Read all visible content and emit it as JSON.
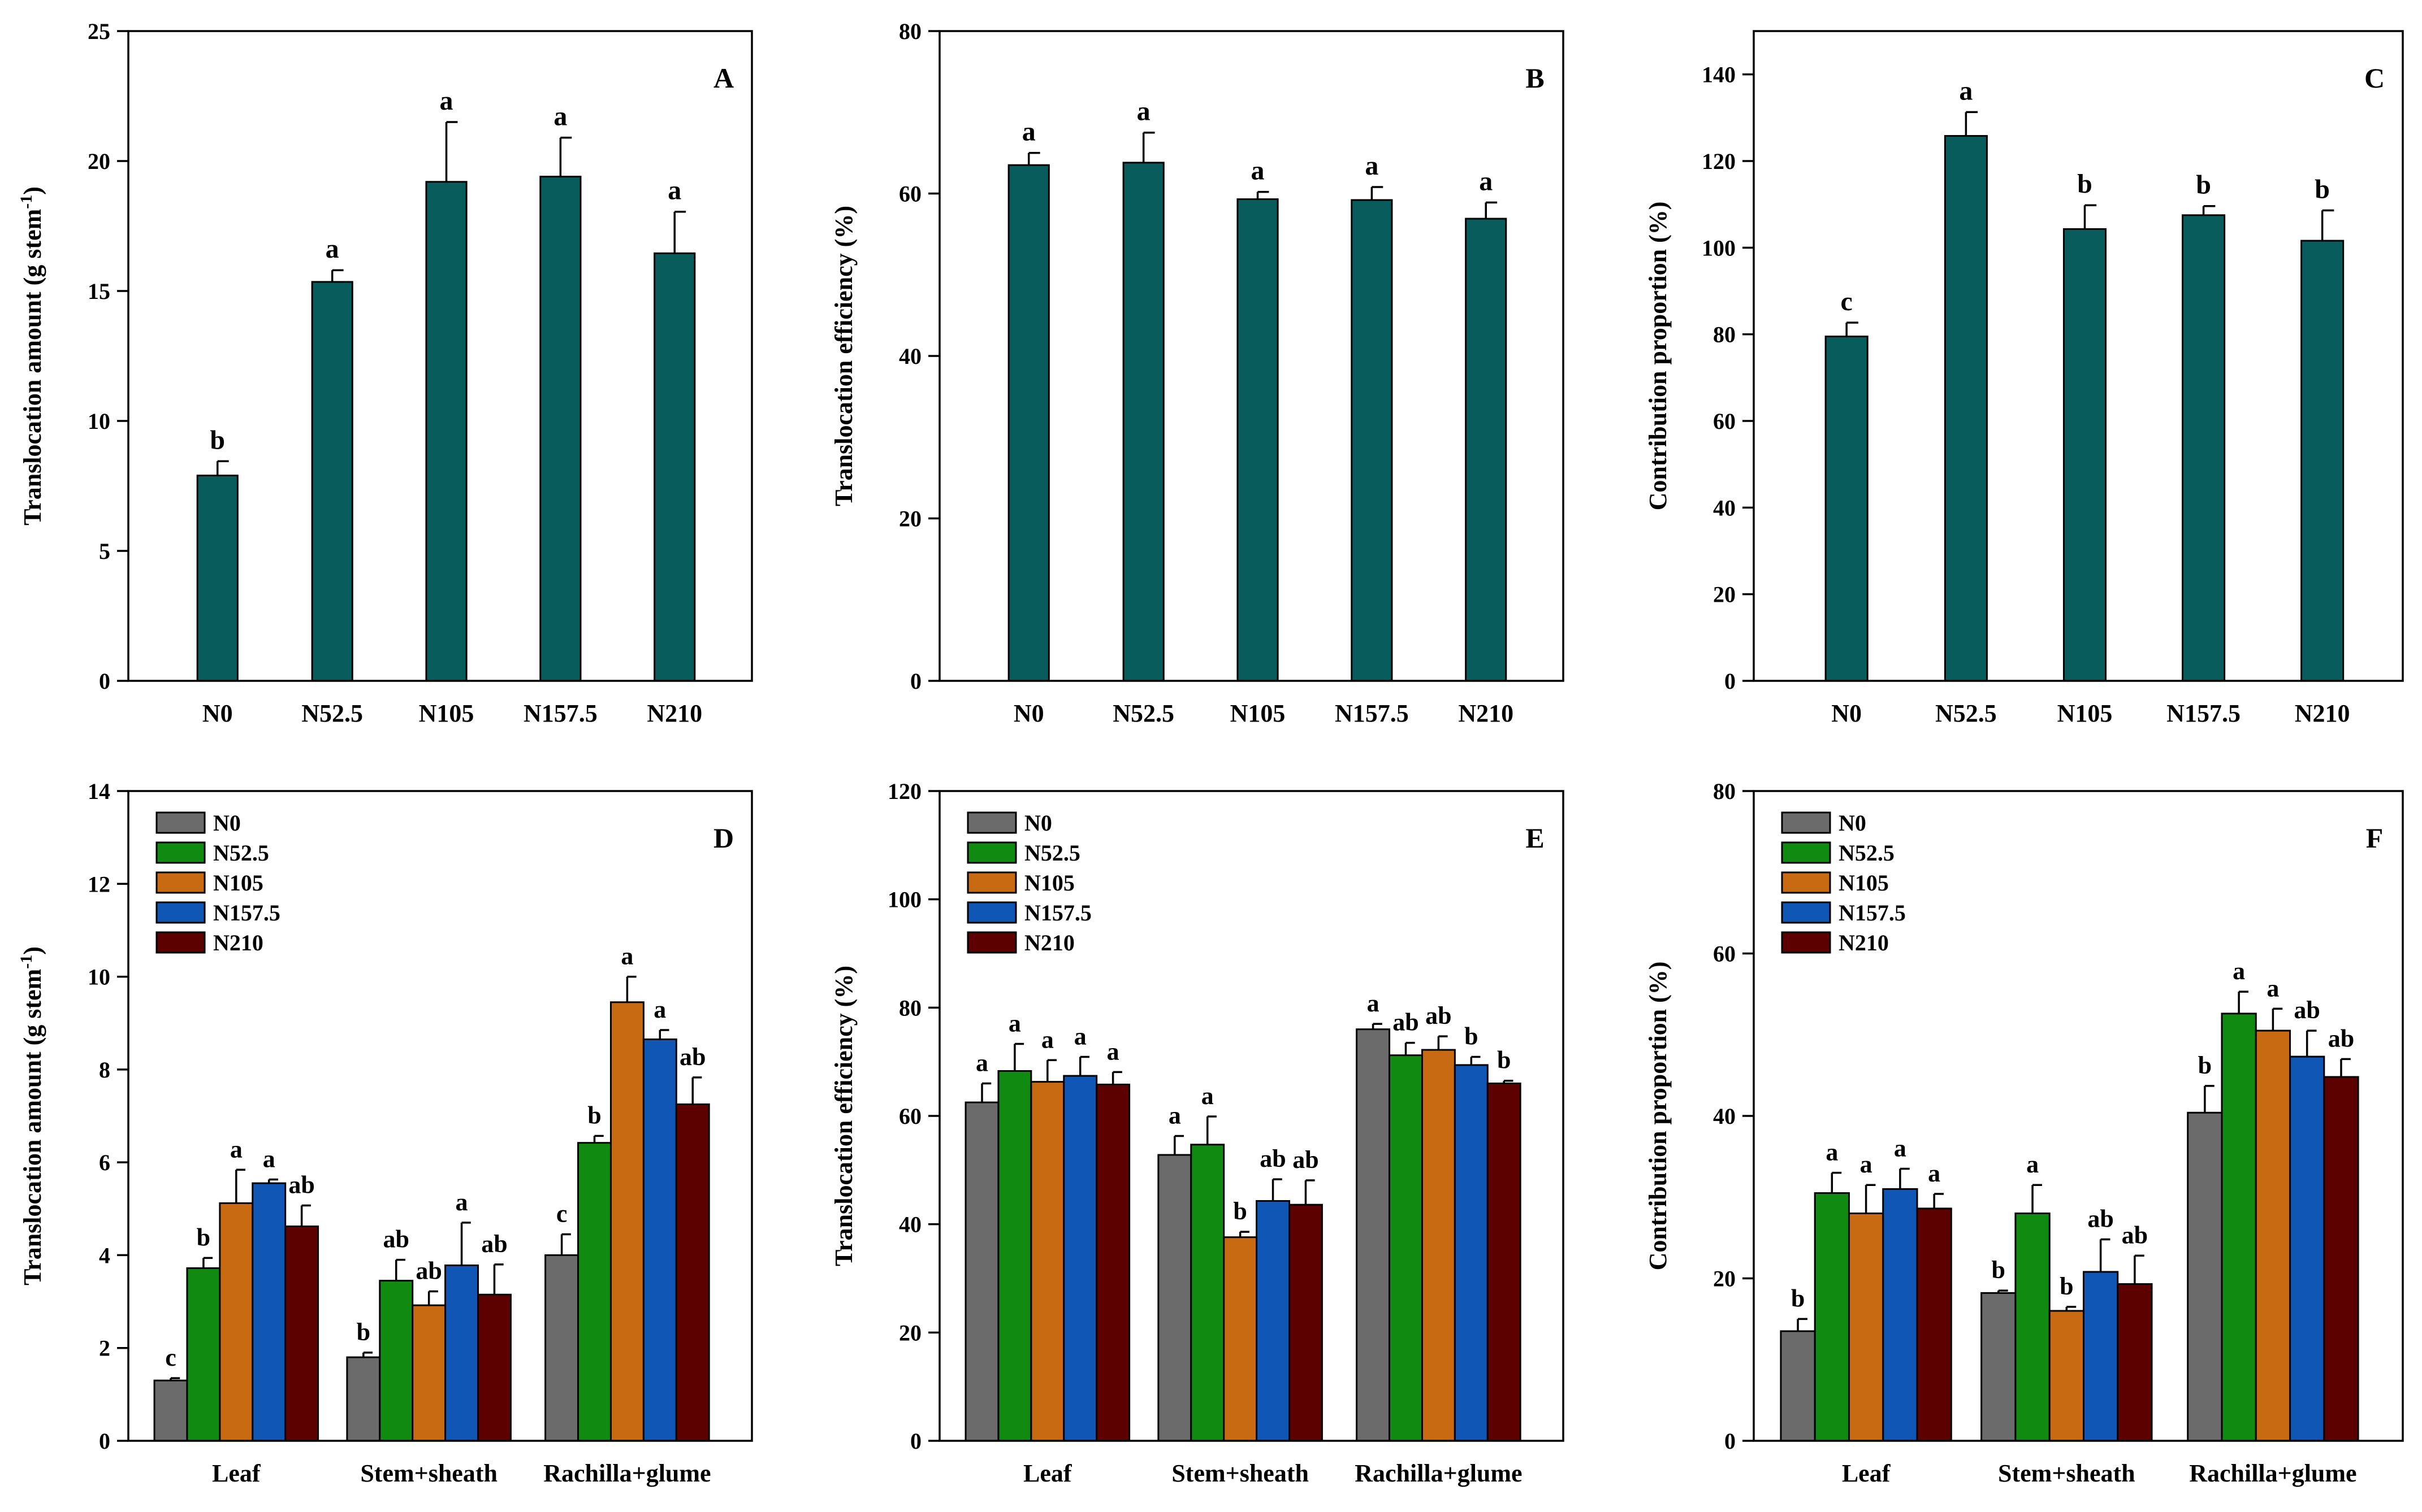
{
  "colors": {
    "single": "#085c5c",
    "N0": "#6b6b6b",
    "N52.5": "#118a11",
    "N105": "#c86a12",
    "N157.5": "#1056b4",
    "N210": "#5c0000"
  },
  "chart_data": [
    {
      "panel": "A",
      "type": "bar",
      "categories": [
        "N0",
        "N52.5",
        "N105",
        "N157.5",
        "N210"
      ],
      "values": [
        7.9,
        15.35,
        19.2,
        19.4,
        16.45
      ],
      "errors": [
        0.55,
        0.45,
        2.3,
        1.5,
        1.6
      ],
      "letters": [
        "b",
        "a",
        "a",
        "a",
        "a"
      ],
      "ylabel": "Translocation amount (g stem",
      "ylabel_sup": "-1",
      "ylabel_end": ")",
      "ylim": [
        0,
        25
      ],
      "yticks": [
        "0",
        "5",
        "10",
        "15",
        "20",
        "25"
      ]
    },
    {
      "panel": "B",
      "type": "bar",
      "categories": [
        "N0",
        "N52.5",
        "N105",
        "N157.5",
        "N210"
      ],
      "values": [
        63.5,
        63.8,
        59.3,
        59.2,
        56.9
      ],
      "errors": [
        1.5,
        3.7,
        0.9,
        1.6,
        2.0
      ],
      "letters": [
        "a",
        "a",
        "a",
        "a",
        "a"
      ],
      "ylabel": "Translocation efficiency (%)",
      "ylim": [
        0,
        80
      ],
      "yticks": [
        "0",
        "20",
        "40",
        "60",
        "80"
      ]
    },
    {
      "panel": "C",
      "type": "bar",
      "categories": [
        "N0",
        "N52.5",
        "N105",
        "N157.5",
        "N210"
      ],
      "values": [
        79.5,
        125.8,
        104.3,
        107.5,
        101.6
      ],
      "errors": [
        3.2,
        5.5,
        5.5,
        2.1,
        7.0
      ],
      "letters": [
        "c",
        "a",
        "b",
        "b",
        "b"
      ],
      "ylabel": "Contribution proportion (%)",
      "ylim": [
        0,
        150
      ],
      "yticks": [
        "0",
        "20",
        "40",
        "60",
        "80",
        "100",
        "120",
        "140"
      ]
    },
    {
      "panel": "D",
      "type": "bar",
      "categories": [
        "Leaf",
        "Stem+sheath",
        "Rachilla+glume"
      ],
      "series": [
        {
          "name": "N0",
          "values": [
            1.3,
            1.8,
            4.0
          ],
          "errors": [
            0.05,
            0.1,
            0.45
          ],
          "letters": [
            "c",
            "b",
            "c"
          ]
        },
        {
          "name": "N52.5",
          "values": [
            3.72,
            3.45,
            6.42
          ],
          "errors": [
            0.22,
            0.45,
            0.15
          ],
          "letters": [
            "b",
            "ab",
            "b"
          ]
        },
        {
          "name": "N105",
          "values": [
            5.12,
            2.92,
            9.45
          ],
          "errors": [
            0.72,
            0.3,
            0.55
          ],
          "letters": [
            "a",
            "ab",
            "a"
          ]
        },
        {
          "name": "N157.5",
          "values": [
            5.55,
            3.78,
            8.65
          ],
          "errors": [
            0.08,
            0.92,
            0.2
          ],
          "letters": [
            "a",
            "a",
            "a"
          ]
        },
        {
          "name": "N210",
          "values": [
            4.62,
            3.15,
            7.25
          ],
          "errors": [
            0.45,
            0.65,
            0.58
          ],
          "letters": [
            "ab",
            "ab",
            "ab"
          ]
        }
      ],
      "ylabel": "Translocation amount (g stem",
      "ylabel_sup": "-1",
      "ylabel_end": ")",
      "ylim": [
        0,
        14
      ],
      "yticks": [
        "0",
        "2",
        "4",
        "6",
        "8",
        "10",
        "12",
        "14"
      ],
      "legend": [
        "N0",
        "N52.5",
        "N105",
        "N157.5",
        "N210"
      ]
    },
    {
      "panel": "E",
      "type": "bar",
      "categories": [
        "Leaf",
        "Stem+sheath",
        "Rachilla+glume"
      ],
      "series": [
        {
          "name": "N0",
          "values": [
            62.5,
            52.8,
            76.0
          ],
          "errors": [
            3.5,
            3.5,
            1.0
          ],
          "letters": [
            "a",
            "a",
            "a"
          ]
        },
        {
          "name": "N52.5",
          "values": [
            68.3,
            54.7,
            71.2
          ],
          "errors": [
            5.0,
            5.2,
            2.3
          ],
          "letters": [
            "a",
            "a",
            "ab"
          ]
        },
        {
          "name": "N105",
          "values": [
            66.3,
            37.6,
            72.2
          ],
          "errors": [
            4.0,
            1.0,
            2.5
          ],
          "letters": [
            "a",
            "b",
            "ab"
          ]
        },
        {
          "name": "N157.5",
          "values": [
            67.4,
            44.3,
            69.4
          ],
          "errors": [
            3.5,
            4.0,
            1.5
          ],
          "letters": [
            "a",
            "ab",
            "b"
          ]
        },
        {
          "name": "N210",
          "values": [
            65.8,
            43.6,
            66.0
          ],
          "errors": [
            2.3,
            4.5,
            0.5
          ],
          "letters": [
            "a",
            "ab",
            "b"
          ]
        }
      ],
      "ylabel": "Translocation efficiency (%)",
      "ylim": [
        0,
        120
      ],
      "yticks": [
        "0",
        "20",
        "40",
        "60",
        "80",
        "100",
        "120"
      ],
      "legend": [
        "N0",
        "N52.5",
        "N105",
        "N157.5",
        "N210"
      ]
    },
    {
      "panel": "F",
      "type": "bar",
      "categories": [
        "Leaf",
        "Stem+sheath",
        "Rachilla+glume"
      ],
      "series": [
        {
          "name": "N0",
          "values": [
            13.5,
            18.2,
            40.4
          ],
          "errors": [
            1.5,
            0.3,
            3.3
          ],
          "letters": [
            "b",
            "b",
            "b"
          ]
        },
        {
          "name": "N52.5",
          "values": [
            30.5,
            28.0,
            52.6
          ],
          "errors": [
            2.5,
            3.5,
            2.7
          ],
          "letters": [
            "a",
            "a",
            "a"
          ]
        },
        {
          "name": "N105",
          "values": [
            28.0,
            16.0,
            50.5
          ],
          "errors": [
            3.5,
            0.5,
            2.7
          ],
          "letters": [
            "a",
            "b",
            "a"
          ]
        },
        {
          "name": "N157.5",
          "values": [
            31.0,
            20.8,
            47.3
          ],
          "errors": [
            2.5,
            4.0,
            3.2
          ],
          "letters": [
            "a",
            "ab",
            "ab"
          ]
        },
        {
          "name": "N210",
          "values": [
            28.6,
            19.3,
            44.8
          ],
          "errors": [
            1.8,
            3.5,
            2.2
          ],
          "letters": [
            "a",
            "ab",
            "ab"
          ]
        }
      ],
      "ylabel": "Contribution proportion (%)",
      "ylim": [
        0,
        80
      ],
      "yticks": [
        "0",
        "20",
        "40",
        "60",
        "80"
      ],
      "legend": [
        "N0",
        "N52.5",
        "N105",
        "N157.5",
        "N210"
      ]
    }
  ]
}
